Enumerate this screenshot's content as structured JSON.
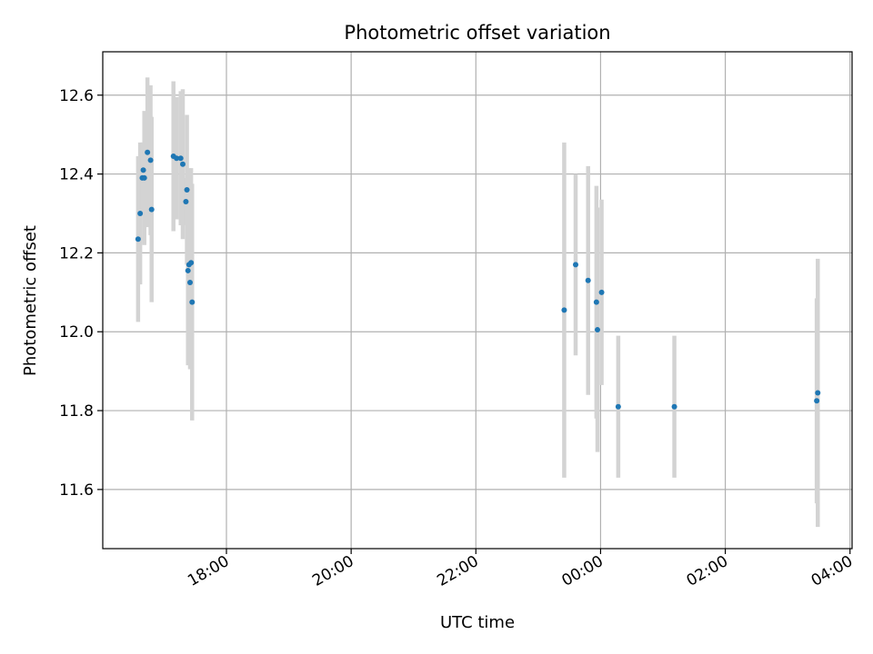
{
  "chart_data": {
    "type": "scatter",
    "title": "Photometric offset variation",
    "xlabel": "UTC time",
    "ylabel": "Photometric offset",
    "ylim": [
      11.45,
      12.71
    ],
    "xlim": [
      "16:01",
      "04:02"
    ],
    "x_ticks": [
      "18:00",
      "20:00",
      "22:00",
      "00:00",
      "02:00",
      "04:00"
    ],
    "y_ticks": [
      11.6,
      11.8,
      12.0,
      12.2,
      12.4,
      12.6
    ],
    "grid": true,
    "legend": "none",
    "marker_color": "#1f77b4",
    "errorbar_color": "#d3d3d3",
    "points": [
      {
        "x": "16:35",
        "y": 12.235,
        "err": 0.21
      },
      {
        "x": "16:37",
        "y": 12.3,
        "err": 0.18
      },
      {
        "x": "16:39",
        "y": 12.39,
        "err": 0.09
      },
      {
        "x": "16:40",
        "y": 12.41,
        "err": 0.07
      },
      {
        "x": "16:41",
        "y": 12.39,
        "err": 0.17
      },
      {
        "x": "16:44",
        "y": 12.455,
        "err": 0.19
      },
      {
        "x": "16:47",
        "y": 12.435,
        "err": 0.19
      },
      {
        "x": "16:48",
        "y": 12.31,
        "err": 0.235
      },
      {
        "x": "17:09",
        "y": 12.445,
        "err": 0.19
      },
      {
        "x": "17:12",
        "y": 12.44,
        "err": 0.155
      },
      {
        "x": "17:16",
        "y": 12.44,
        "err": 0.17
      },
      {
        "x": "17:18",
        "y": 12.425,
        "err": 0.19
      },
      {
        "x": "17:21",
        "y": 12.33,
        "err": 0.06
      },
      {
        "x": "17:22",
        "y": 12.36,
        "err": 0.19
      },
      {
        "x": "17:23",
        "y": 12.155,
        "err": 0.24
      },
      {
        "x": "17:24",
        "y": 12.17,
        "err": 0.245
      },
      {
        "x": "17:25",
        "y": 12.125,
        "err": 0.22
      },
      {
        "x": "17:26",
        "y": 12.175,
        "err": 0.24
      },
      {
        "x": "17:27",
        "y": 12.075,
        "err": 0.3
      },
      {
        "x": "23:25",
        "y": 12.055,
        "err": 0.425
      },
      {
        "x": "23:36",
        "y": 12.17,
        "err": 0.23
      },
      {
        "x": "23:48",
        "y": 12.13,
        "err": 0.29
      },
      {
        "x": "23:56",
        "y": 12.075,
        "err": 0.295
      },
      {
        "x": "23:57",
        "y": 12.005,
        "err": 0.31
      },
      {
        "x": "00:01",
        "y": 12.1,
        "err": 0.235
      },
      {
        "x": "00:17",
        "y": 11.81,
        "err": 0.18
      },
      {
        "x": "01:11",
        "y": 11.81,
        "err": 0.18
      },
      {
        "x": "03:28",
        "y": 11.825,
        "err": 0.26
      },
      {
        "x": "03:29",
        "y": 11.845,
        "err": 0.34
      }
    ]
  }
}
